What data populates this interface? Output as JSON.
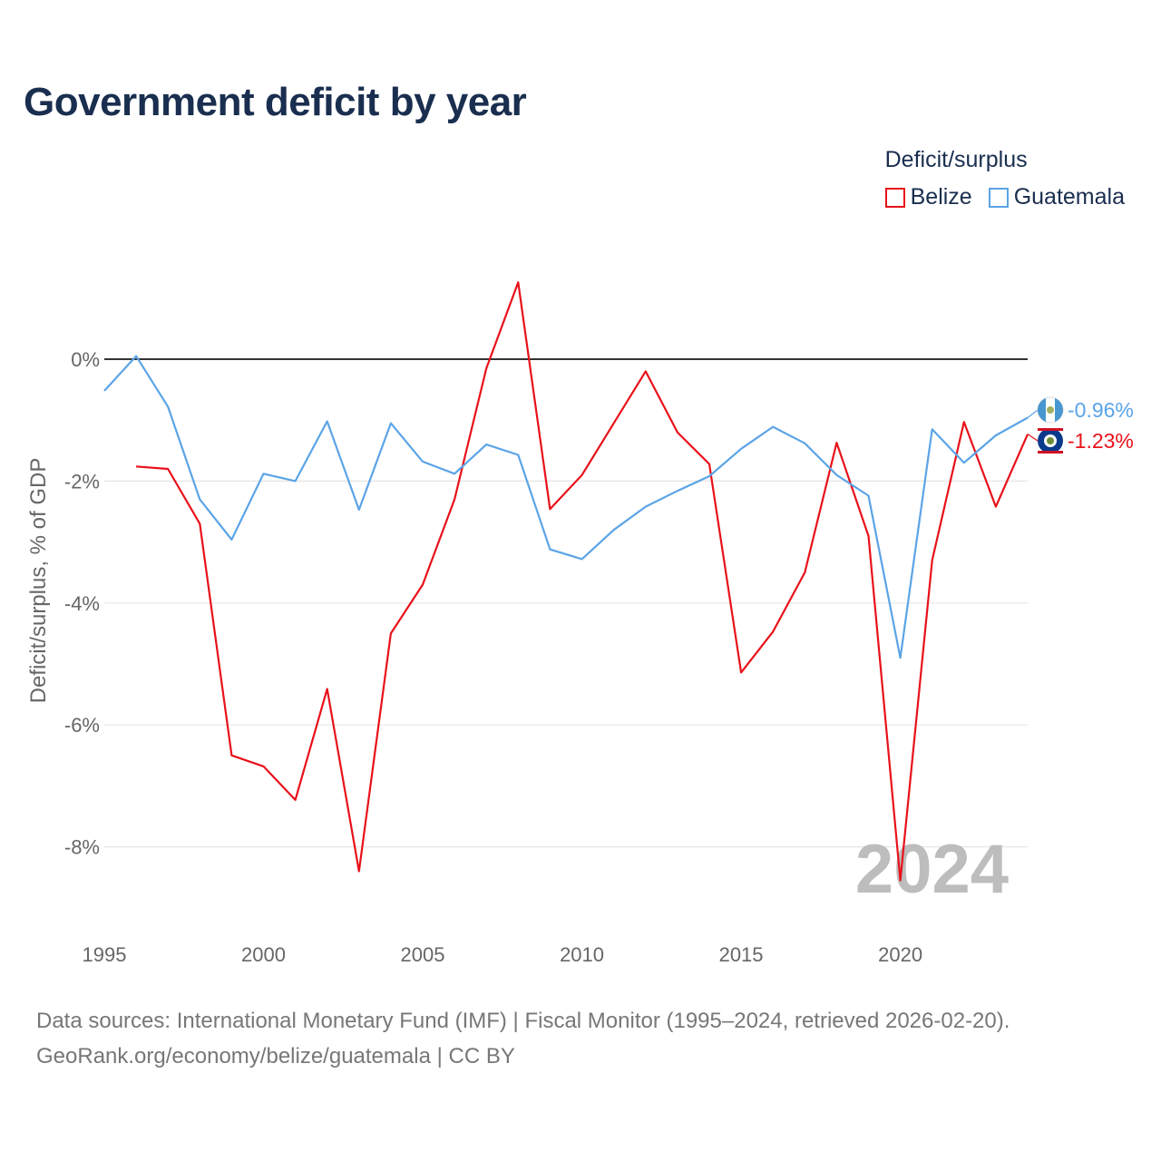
{
  "title": "Government deficit by year",
  "legend": {
    "title": "Deficit/surplus",
    "items": [
      {
        "label": "Belize",
        "color": "#e8111a"
      },
      {
        "label": "Guatemala",
        "color": "#5ba4e6"
      }
    ]
  },
  "footer": {
    "line1": "Data sources: International Monetary Fund (IMF) | Fiscal Monitor (1995–2024, retrieved 2026-02-20).",
    "line2": "GeoRank.org/economy/belize/guatemala | CC BY"
  },
  "chart_data": {
    "type": "line",
    "title": "Government deficit by year",
    "xlabel": "",
    "ylabel": "Deficit/surplus, % of GDP",
    "xlim": [
      1995,
      2024
    ],
    "ylim": [
      -9.4,
      1.6
    ],
    "x_ticks": [
      1995,
      2000,
      2005,
      2010,
      2015,
      2020
    ],
    "y_ticks": [
      0,
      -2,
      -4,
      -6,
      -8
    ],
    "y_tick_labels": [
      "0%",
      "-2%",
      "-4%",
      "-6%",
      "-8%"
    ],
    "year_watermark": "2024",
    "series": [
      {
        "name": "Belize",
        "color": "#e8111a",
        "end_label": "-1.23%",
        "points": [
          [
            1996,
            -1.76
          ],
          [
            1997,
            -1.8
          ],
          [
            1998,
            -2.7
          ],
          [
            1999,
            -6.5
          ],
          [
            2000,
            -6.68
          ],
          [
            2001,
            -7.23
          ],
          [
            2002,
            -5.41
          ],
          [
            2003,
            -8.4
          ],
          [
            2004,
            -4.5
          ],
          [
            2005,
            -3.7
          ],
          [
            2006,
            -2.3
          ],
          [
            2007,
            -0.15
          ],
          [
            2008,
            1.26
          ],
          [
            2009,
            -2.46
          ],
          [
            2010,
            -1.9
          ],
          [
            2011,
            -1.05
          ],
          [
            2012,
            -0.2
          ],
          [
            2013,
            -1.2
          ],
          [
            2014,
            -1.72
          ],
          [
            2015,
            -5.14
          ],
          [
            2016,
            -4.47
          ],
          [
            2017,
            -3.5
          ],
          [
            2018,
            -1.37
          ],
          [
            2019,
            -2.9
          ],
          [
            2020,
            -8.55
          ],
          [
            2021,
            -3.3
          ],
          [
            2022,
            -1.03
          ],
          [
            2023,
            -2.42
          ],
          [
            2024,
            -1.23
          ]
        ]
      },
      {
        "name": "Guatemala",
        "color": "#5ba4e6",
        "end_label": "-0.96%",
        "points": [
          [
            1995,
            -0.52
          ],
          [
            1996,
            0.05
          ],
          [
            1997,
            -0.78
          ],
          [
            1998,
            -2.3
          ],
          [
            1999,
            -2.96
          ],
          [
            2000,
            -1.88
          ],
          [
            2001,
            -2.0
          ],
          [
            2002,
            -1.02
          ],
          [
            2003,
            -2.47
          ],
          [
            2004,
            -1.05
          ],
          [
            2005,
            -1.68
          ],
          [
            2006,
            -1.88
          ],
          [
            2007,
            -1.4
          ],
          [
            2008,
            -1.57
          ],
          [
            2009,
            -3.12
          ],
          [
            2010,
            -3.28
          ],
          [
            2011,
            -2.8
          ],
          [
            2012,
            -2.42
          ],
          [
            2013,
            -2.16
          ],
          [
            2014,
            -1.92
          ],
          [
            2015,
            -1.47
          ],
          [
            2016,
            -1.11
          ],
          [
            2017,
            -1.38
          ],
          [
            2018,
            -1.9
          ],
          [
            2019,
            -2.24
          ],
          [
            2020,
            -4.9
          ],
          [
            2021,
            -1.15
          ],
          [
            2022,
            -1.7
          ],
          [
            2023,
            -1.25
          ],
          [
            2024,
            -0.96
          ]
        ]
      }
    ]
  }
}
